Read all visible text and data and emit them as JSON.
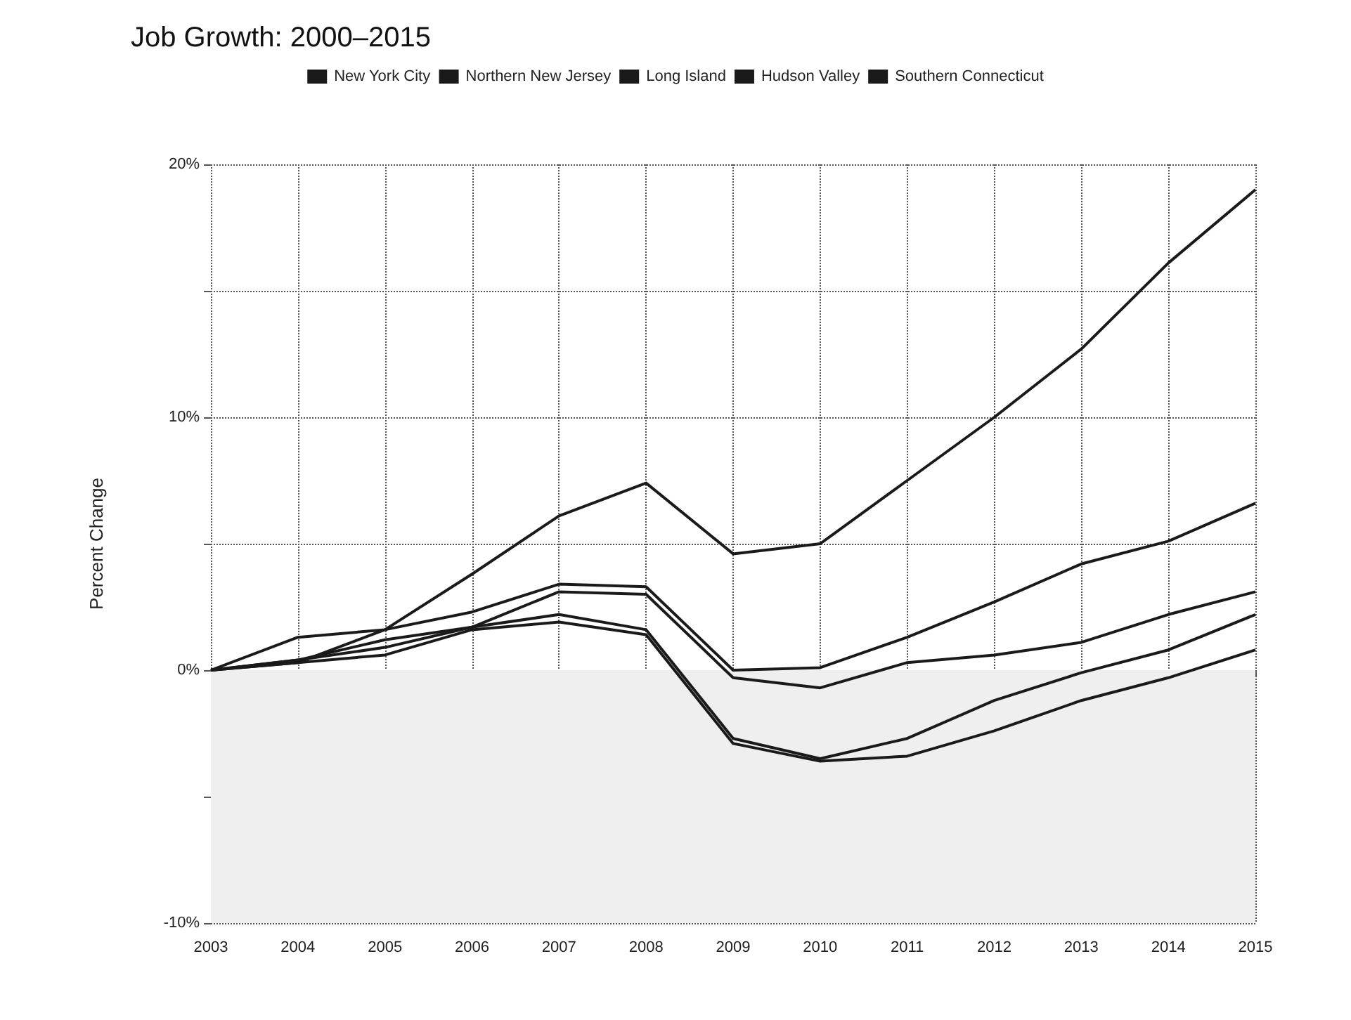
{
  "chart_data": {
    "type": "line",
    "title": "Job Growth: 2000–2015",
    "ylabel": "Percent Change",
    "categories": [
      "2003",
      "2004",
      "2005",
      "2006",
      "2007",
      "2008",
      "2009",
      "2010",
      "2011",
      "2012",
      "2013",
      "2014",
      "2015"
    ],
    "series": [
      {
        "name": "New York City",
        "color": "#1a1a1a",
        "values": [
          0,
          0.3,
          1.6,
          3.8,
          6.1,
          7.4,
          4.6,
          5.0,
          7.5,
          10.0,
          12.7,
          16.1,
          19.0
        ]
      },
      {
        "name": "Northern New Jersey",
        "color": "#1a1a1a",
        "values": [
          0,
          1.3,
          1.6,
          2.3,
          3.4,
          3.3,
          0,
          0.1,
          1.3,
          2.7,
          4.2,
          5.1,
          6.6
        ]
      },
      {
        "name": "Long Island",
        "color": "#1a1a1a",
        "values": [
          0,
          0.4,
          1.2,
          1.7,
          3.1,
          3.0,
          -0.3,
          -0.7,
          0.3,
          0.6,
          1.1,
          2.2,
          3.1
        ]
      },
      {
        "name": "Hudson Valley",
        "color": "#1a1a1a",
        "values": [
          0,
          0.4,
          0.9,
          1.7,
          2.2,
          1.6,
          -2.7,
          -3.5,
          -2.7,
          -1.2,
          -0.1,
          0.8,
          2.2
        ]
      },
      {
        "name": "Southern Connecticut",
        "color": "#1a1a1a",
        "values": [
          0,
          0.3,
          0.6,
          1.6,
          1.9,
          1.4,
          -2.9,
          -3.6,
          -3.4,
          -2.4,
          -1.2,
          -0.3,
          0.8
        ]
      }
    ],
    "ylim": [
      -10,
      20
    ],
    "yticks": [
      {
        "value": -10,
        "label": "-10%"
      },
      {
        "value": -5,
        "label": null
      },
      {
        "value": 0,
        "label": "0%"
      },
      {
        "value": 5,
        "label": null
      },
      {
        "value": 10,
        "label": "10%"
      },
      {
        "value": 15,
        "label": null
      },
      {
        "value": 20,
        "label": "20%"
      }
    ],
    "bands": [
      {
        "axis": "y",
        "from": -10,
        "to": 0,
        "color": "#efefef"
      }
    ],
    "grid": true,
    "legend": "top",
    "marker": "none",
    "line_style": "solid"
  }
}
